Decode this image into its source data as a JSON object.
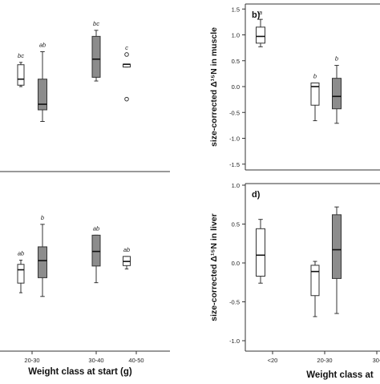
{
  "chart_data": [
    {
      "type": "box",
      "categories": [
        "20-30",
        "30-40",
        "40-50"
      ],
      "groups": [
        {
          "category": "20-30",
          "fill": "white",
          "box": {
            "whisker_low": 0.0,
            "q1": 0.03,
            "median": 0.16,
            "q3": 0.47,
            "whisker_high": 0.52
          },
          "letter": "bc"
        },
        {
          "category": "20-30",
          "fill": "gray",
          "box": {
            "whisker_low": -0.75,
            "q1": -0.5,
            "median": -0.38,
            "q3": 0.16,
            "whisker_high": 0.75
          },
          "letter": "ab"
        },
        {
          "category": "30-40",
          "fill": "gray",
          "box": {
            "whisker_low": 0.12,
            "q1": 0.2,
            "median": 0.59,
            "q3": 1.08,
            "whisker_high": 1.21
          },
          "letter": "bc"
        },
        {
          "category": "40-50",
          "fill": "white",
          "box": {
            "whisker_low": 0.42,
            "q1": 0.42,
            "median": 0.48,
            "q3": 0.48,
            "whisker_high": 0.48
          },
          "outliers": [
            0.69,
            -0.27
          ],
          "letter": "c"
        }
      ]
    },
    {
      "type": "box",
      "categories": [
        "20-30",
        "30-40",
        "40-50"
      ],
      "xlabel": "Weight class at start (g)",
      "groups": [
        {
          "category": "20-30",
          "fill": "white",
          "box": {
            "whisker_low": -0.81,
            "q1": -0.58,
            "median": -0.26,
            "q3": -0.13,
            "whisker_high": -0.03
          },
          "letter": "ab"
        },
        {
          "category": "20-30",
          "fill": "gray",
          "box": {
            "whisker_low": -0.9,
            "q1": -0.45,
            "median": -0.04,
            "q3": 0.29,
            "whisker_high": 0.83
          },
          "letter": "b"
        },
        {
          "category": "30-40",
          "fill": "gray",
          "box": {
            "whisker_low": -0.57,
            "q1": -0.17,
            "median": 0.18,
            "q3": 0.57,
            "whisker_high": 0.57
          },
          "letter": "ab"
        },
        {
          "category": "40-50",
          "fill": "white",
          "box": {
            "whisker_low": -0.24,
            "q1": -0.16,
            "median": -0.06,
            "q3": 0.06,
            "whisker_high": 0.06
          },
          "letter": "ab"
        }
      ]
    },
    {
      "type": "box",
      "panel_label": "b)",
      "ylabel": "size-corrected Δ¹⁵N in muscle",
      "ylim": [
        -1.5,
        1.5
      ],
      "yticks": [
        "1.5",
        "1.0",
        "0.5",
        "0.0",
        "-0.5",
        "-1.0",
        "-1.5"
      ],
      "categories": [
        "<20",
        "20-30"
      ],
      "groups": [
        {
          "category": "<20",
          "fill": "white",
          "box": {
            "whisker_low": 0.77,
            "q1": 0.84,
            "median": 0.97,
            "q3": 1.15,
            "whisker_high": 1.3
          },
          "letter": "a"
        },
        {
          "category": "20-30",
          "fill": "white",
          "box": {
            "whisker_low": -0.66,
            "q1": -0.36,
            "median": 0.0,
            "q3": 0.07,
            "whisker_high": 0.07
          },
          "letter": "b"
        },
        {
          "category": "20-30",
          "fill": "gray",
          "box": {
            "whisker_low": -0.71,
            "q1": -0.43,
            "median": -0.19,
            "q3": 0.16,
            "whisker_high": 0.41
          },
          "letter": "b"
        }
      ]
    },
    {
      "type": "box",
      "panel_label": "d)",
      "ylabel": "size-corrected Δ¹⁵N in liver",
      "ylim": [
        -1.0,
        1.0
      ],
      "yticks": [
        "1.0",
        "0.5",
        "0.0",
        "-0.5",
        "-1.0"
      ],
      "categories": [
        "<20",
        "20-30",
        "30-"
      ],
      "xlabel": "Weight class at",
      "groups": [
        {
          "category": "<20",
          "fill": "white",
          "box": {
            "whisker_low": -0.26,
            "q1": -0.17,
            "median": 0.1,
            "q3": 0.44,
            "whisker_high": 0.56
          },
          "letter": ""
        },
        {
          "category": "20-30",
          "fill": "white",
          "box": {
            "whisker_low": -0.69,
            "q1": -0.42,
            "median": -0.11,
            "q3": -0.03,
            "whisker_high": 0.02
          },
          "letter": ""
        },
        {
          "category": "20-30",
          "fill": "gray",
          "box": {
            "whisker_low": -0.65,
            "q1": -0.2,
            "median": 0.17,
            "q3": 0.62,
            "whisker_high": 0.72
          },
          "letter": ""
        }
      ]
    }
  ]
}
